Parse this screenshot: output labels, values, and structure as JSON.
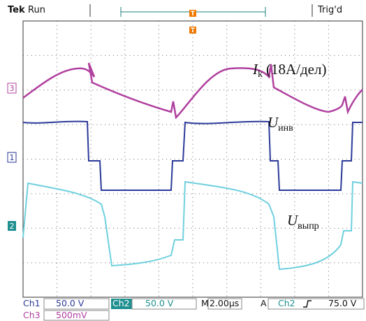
{
  "header": {
    "brand": "Tek",
    "state": "Run",
    "trigger_status": "Trig'd",
    "trigger_marker": "T"
  },
  "channel_markers": [
    "3",
    "1",
    "2"
  ],
  "annotations": [
    {
      "symbol": "I",
      "subscript": "k",
      "text": "(18A/дел)"
    },
    {
      "symbol": "U",
      "subscript": "инв"
    },
    {
      "symbol": "U",
      "subscript": "выпр"
    }
  ],
  "footer": {
    "ch1": {
      "label": "Ch1",
      "scale": "50.0 V"
    },
    "ch2": {
      "label": "Ch2",
      "scale": "50.0 V"
    },
    "timebase": {
      "label": "M",
      "value": "2.00µs"
    },
    "trigger": {
      "mode": "A",
      "source": "Ch2",
      "level": "75.0 V"
    },
    "ch3": {
      "label": "Ch3",
      "scale": "500mV"
    }
  }
}
